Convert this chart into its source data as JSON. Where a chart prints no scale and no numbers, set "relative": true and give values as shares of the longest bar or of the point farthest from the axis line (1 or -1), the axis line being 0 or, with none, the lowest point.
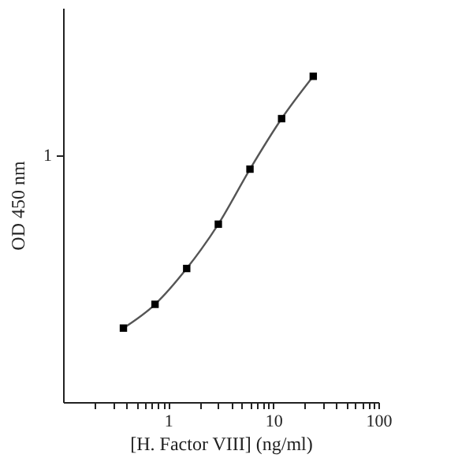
{
  "chart_data": {
    "type": "line",
    "xlabel": "[H. Factor VIII] (ng/ml)",
    "ylabel": "OD 450 nm",
    "x": [
      0.375,
      0.75,
      1.5,
      3,
      6,
      12,
      24
    ],
    "series": [
      {
        "color": "#555555",
        "values": [
          0.227,
          0.3,
          0.41,
          0.546,
          0.715,
          0.87,
          1
        ]
      }
    ],
    "relative": true,
    "annotations": [
      "1"
    ],
    "log": "x",
    "marker": "square",
    "line_style": "solid",
    "xlim": [
      0.1,
      100
    ],
    "xticks": [
      {
        "value": 0.2,
        "label": null
      },
      {
        "value": 0.3,
        "label": null
      },
      {
        "value": 0.4,
        "label": null
      },
      {
        "value": 0.5,
        "label": null
      },
      {
        "value": 0.6,
        "label": null
      },
      {
        "value": 0.7,
        "label": null
      },
      {
        "value": 0.8,
        "label": null
      },
      {
        "value": 0.9,
        "label": null
      },
      1,
      {
        "value": 2,
        "label": null
      },
      {
        "value": 3,
        "label": null
      },
      {
        "value": 4,
        "label": null
      },
      {
        "value": 5,
        "label": null
      },
      {
        "value": 6,
        "label": null
      },
      {
        "value": 7,
        "label": null
      },
      {
        "value": 8,
        "label": null
      },
      {
        "value": 9,
        "label": null
      },
      10,
      {
        "value": 20,
        "label": null
      },
      {
        "value": 30,
        "label": null
      },
      {
        "value": 40,
        "label": null
      },
      {
        "value": 50,
        "label": null
      },
      {
        "value": 60,
        "label": null
      },
      {
        "value": 70,
        "label": null
      },
      {
        "value": 80,
        "label": null
      },
      {
        "value": 90,
        "label": null
      },
      100
    ]
  }
}
